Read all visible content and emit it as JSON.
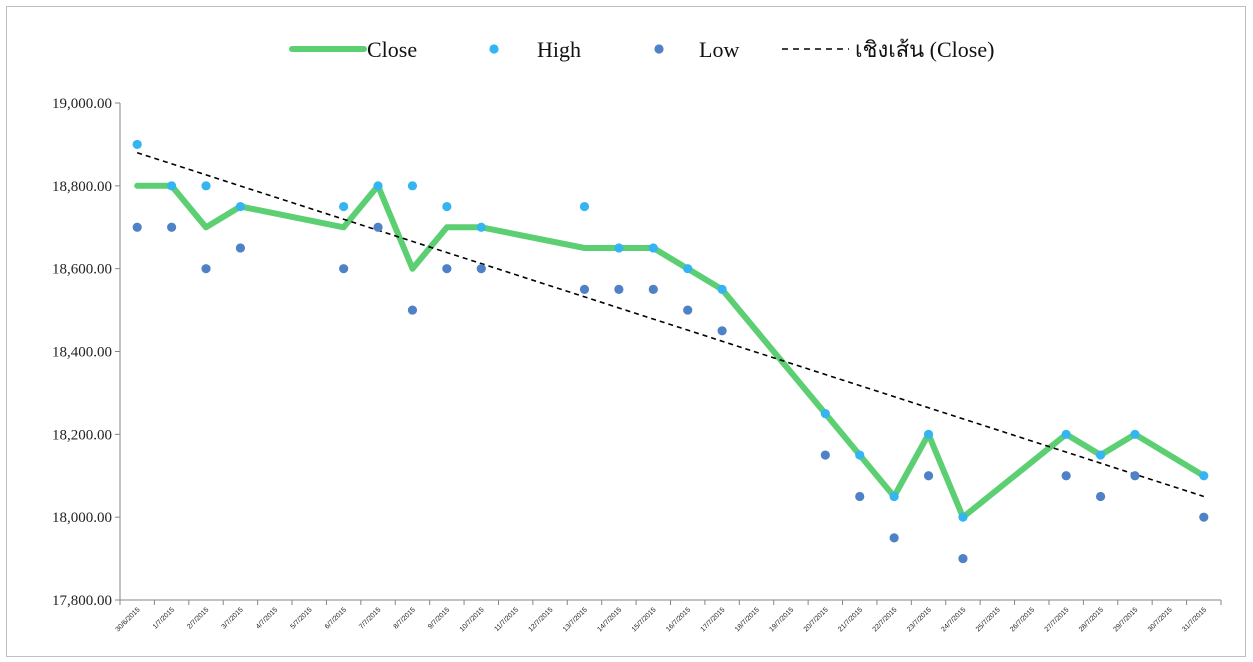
{
  "chart_data": {
    "type": "line",
    "title": "",
    "xlabel": "",
    "ylabel": "",
    "ylim": [
      17800,
      19000
    ],
    "yticks": [
      17800,
      18000,
      18200,
      18400,
      18600,
      18800,
      19000
    ],
    "ytick_labels": [
      "17,800.00",
      "18,000.00",
      "18,200.00",
      "18,400.00",
      "18,600.00",
      "18,800.00",
      "19,000.00"
    ],
    "categories": [
      "30/6/2015",
      "1/7/2015",
      "2/7/2015",
      "3/7/2015",
      "4/7/2015",
      "5/7/2015",
      "6/7/2015",
      "7/7/2015",
      "8/7/2015",
      "9/7/2015",
      "10/7/2015",
      "11/7/2015",
      "12/7/2015",
      "13/7/2015",
      "14/7/2015",
      "15/7/2015",
      "16/7/2015",
      "17/7/2015",
      "18/7/2015",
      "19/7/2015",
      "20/7/2015",
      "21/7/2015",
      "22/7/2015",
      "23/7/2015",
      "24/7/2015",
      "25/7/2015",
      "26/7/2015",
      "27/7/2015",
      "28/7/2015",
      "29/7/2015",
      "30/7/2015",
      "31/7/2015"
    ],
    "grid": false,
    "legend": "top",
    "series": [
      {
        "name": "Close",
        "kind": "line",
        "color": "#5ccf73",
        "values": [
          18800,
          18800,
          18700,
          18750,
          null,
          null,
          18700,
          18800,
          18600,
          18700,
          18700,
          null,
          null,
          18650,
          18650,
          18650,
          18600,
          18550,
          null,
          null,
          18250,
          18150,
          18050,
          18200,
          18000,
          null,
          null,
          18200,
          18150,
          18200,
          null,
          18100
        ]
      },
      {
        "name": "High",
        "kind": "scatter",
        "color": "#35b4f2",
        "values": [
          18900,
          18800,
          18800,
          18750,
          null,
          null,
          18750,
          18800,
          18800,
          18750,
          18700,
          null,
          null,
          18750,
          18650,
          18650,
          18600,
          18550,
          null,
          null,
          18250,
          18150,
          18050,
          18200,
          18000,
          null,
          null,
          18200,
          18150,
          18200,
          null,
          18100
        ]
      },
      {
        "name": "Low",
        "kind": "scatter",
        "color": "#4f81c7",
        "values": [
          18700,
          18700,
          18600,
          18650,
          null,
          null,
          18600,
          18700,
          18500,
          18600,
          18600,
          null,
          null,
          18550,
          18550,
          18550,
          18500,
          18450,
          null,
          null,
          18150,
          18050,
          17950,
          18100,
          17900,
          null,
          null,
          18100,
          18050,
          18100,
          null,
          18000
        ]
      },
      {
        "name": "เชิงเส้น (Close)",
        "kind": "trend",
        "color": "#000000",
        "start": 18880,
        "end": 18050
      }
    ]
  }
}
